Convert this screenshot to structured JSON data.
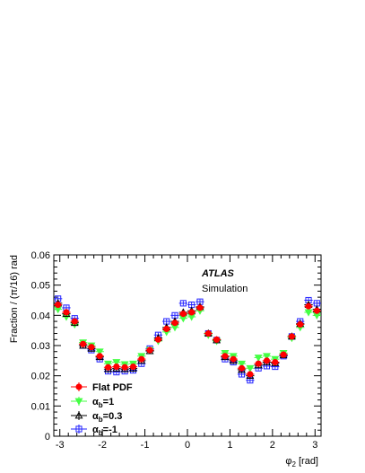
{
  "chart_data": {
    "type": "scatter",
    "title": "",
    "xlabel": "φ₂ [rad]",
    "ylabel": "Fraction / (π/16) rad",
    "xlim": [
      -3.14159,
      3.14159
    ],
    "ylim": [
      0,
      0.06
    ],
    "xticks": [
      -3,
      -2,
      -1,
      0,
      1,
      2,
      3
    ],
    "yticks": [
      0,
      0.01,
      0.02,
      0.03,
      0.04,
      0.05,
      0.06
    ],
    "ytick_labels": [
      "0",
      "0.01",
      "0.02",
      "0.03",
      "0.04",
      "0.05",
      "0.06"
    ],
    "annotations": {
      "experiment": "ATLAS",
      "label": "Simulation"
    },
    "legend_position": "bottom-left",
    "x": [
      -3.043,
      -2.847,
      -2.651,
      -2.454,
      -2.258,
      -2.062,
      -1.865,
      -1.669,
      -1.473,
      -1.276,
      -1.08,
      -0.884,
      -0.687,
      -0.491,
      -0.295,
      -0.098,
      0.098,
      0.295,
      0.491,
      0.687,
      0.884,
      1.08,
      1.276,
      1.473,
      1.669,
      1.865,
      2.062,
      2.258,
      2.454,
      2.651,
      2.847,
      3.043
    ],
    "series": [
      {
        "name": "Flat PDF",
        "marker": "filled-circle",
        "color": "#ff0000",
        "values": [
          0.0435,
          0.041,
          0.038,
          0.0305,
          0.0295,
          0.0265,
          0.0228,
          0.023,
          0.0228,
          0.023,
          0.0255,
          0.0285,
          0.032,
          0.0355,
          0.0375,
          0.0405,
          0.041,
          0.0425,
          0.034,
          0.032,
          0.0265,
          0.0255,
          0.0225,
          0.0205,
          0.024,
          0.025,
          0.0245,
          0.027,
          0.033,
          0.037,
          0.043,
          0.0415
        ]
      },
      {
        "name": "αb=1",
        "name_base": "α",
        "name_sub": "b",
        "name_suffix": "=1",
        "marker": "filled-triangle-down",
        "color": "#44ff44",
        "values": [
          0.042,
          0.0395,
          0.037,
          0.031,
          0.03,
          0.028,
          0.024,
          0.0245,
          0.0238,
          0.024,
          0.0265,
          0.0285,
          0.0315,
          0.0345,
          0.036,
          0.039,
          0.0395,
          0.0415,
          0.0335,
          0.0315,
          0.0275,
          0.0265,
          0.024,
          0.0225,
          0.026,
          0.0265,
          0.0255,
          0.0275,
          0.0325,
          0.036,
          0.041,
          0.04
        ]
      },
      {
        "name": "αb=0.3",
        "name_base": "α",
        "name_sub": "b",
        "name_suffix": "=0.3",
        "marker": "open-triangle-up",
        "color": "#000000",
        "values": [
          0.044,
          0.0405,
          0.0375,
          0.03,
          0.029,
          0.0262,
          0.0222,
          0.0224,
          0.0222,
          0.0224,
          0.025,
          0.0282,
          0.0325,
          0.036,
          0.038,
          0.041,
          0.0415,
          0.0428,
          0.034,
          0.0318,
          0.0262,
          0.025,
          0.022,
          0.02,
          0.0235,
          0.0245,
          0.0242,
          0.0268,
          0.033,
          0.0372,
          0.0435,
          0.042
        ]
      },
      {
        "name": "αb=-1",
        "name_base": "α",
        "name_sub": "b",
        "name_suffix": "=-1",
        "marker": "open-square",
        "color": "#2222ff",
        "values": [
          0.0455,
          0.0425,
          0.039,
          0.03,
          0.0285,
          0.0255,
          0.0215,
          0.0212,
          0.0215,
          0.0218,
          0.024,
          0.029,
          0.0335,
          0.038,
          0.04,
          0.044,
          0.0435,
          0.0445,
          0.034,
          0.0318,
          0.0255,
          0.0245,
          0.0205,
          0.0185,
          0.0225,
          0.0232,
          0.023,
          0.0265,
          0.033,
          0.038,
          0.045,
          0.044
        ]
      }
    ]
  }
}
